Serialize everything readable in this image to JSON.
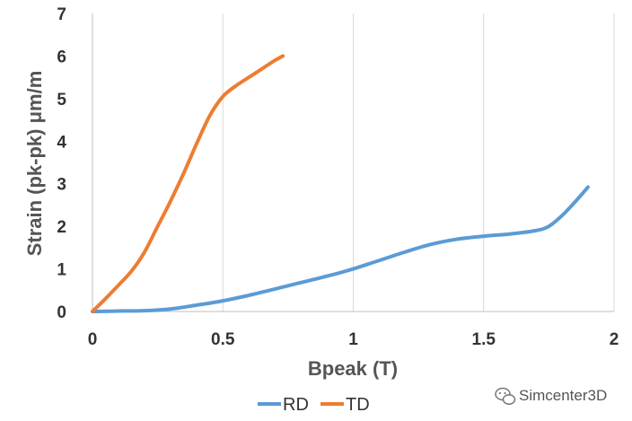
{
  "chart_data": {
    "type": "line",
    "xlabel": "Bpeak (T)",
    "ylabel": "Strain (pk-pk) μm/m",
    "xlim": [
      0,
      2
    ],
    "ylim": [
      0,
      7
    ],
    "x_ticks": [
      "0",
      "0.5",
      "1",
      "1.5",
      "2"
    ],
    "y_ticks": [
      "0",
      "1",
      "2",
      "3",
      "4",
      "5",
      "6",
      "7"
    ],
    "grid": "vertical",
    "legend_position": "bottom",
    "series": [
      {
        "name": "RD",
        "color": "#5B9BD5",
        "points": [
          [
            0,
            0
          ],
          [
            0.1,
            0.01
          ],
          [
            0.2,
            0.02
          ],
          [
            0.3,
            0.06
          ],
          [
            0.4,
            0.15
          ],
          [
            0.5,
            0.25
          ],
          [
            0.6,
            0.38
          ],
          [
            0.7,
            0.53
          ],
          [
            0.8,
            0.68
          ],
          [
            0.9,
            0.83
          ],
          [
            1.0,
            1.0
          ],
          [
            1.1,
            1.2
          ],
          [
            1.2,
            1.4
          ],
          [
            1.3,
            1.58
          ],
          [
            1.4,
            1.7
          ],
          [
            1.5,
            1.77
          ],
          [
            1.6,
            1.82
          ],
          [
            1.7,
            1.9
          ],
          [
            1.75,
            2.0
          ],
          [
            1.8,
            2.25
          ],
          [
            1.85,
            2.57
          ],
          [
            1.9,
            2.92
          ]
        ]
      },
      {
        "name": "TD",
        "color": "#ED7D31",
        "points": [
          [
            0,
            0
          ],
          [
            0.05,
            0.3
          ],
          [
            0.1,
            0.62
          ],
          [
            0.15,
            0.95
          ],
          [
            0.2,
            1.4
          ],
          [
            0.25,
            2.0
          ],
          [
            0.3,
            2.6
          ],
          [
            0.35,
            3.25
          ],
          [
            0.4,
            3.95
          ],
          [
            0.45,
            4.6
          ],
          [
            0.5,
            5.05
          ],
          [
            0.55,
            5.3
          ],
          [
            0.6,
            5.5
          ],
          [
            0.65,
            5.7
          ],
          [
            0.7,
            5.9
          ],
          [
            0.73,
            6.0
          ]
        ]
      }
    ]
  },
  "watermark": {
    "text": "Simcenter3D",
    "icon": "wechat-icon"
  }
}
